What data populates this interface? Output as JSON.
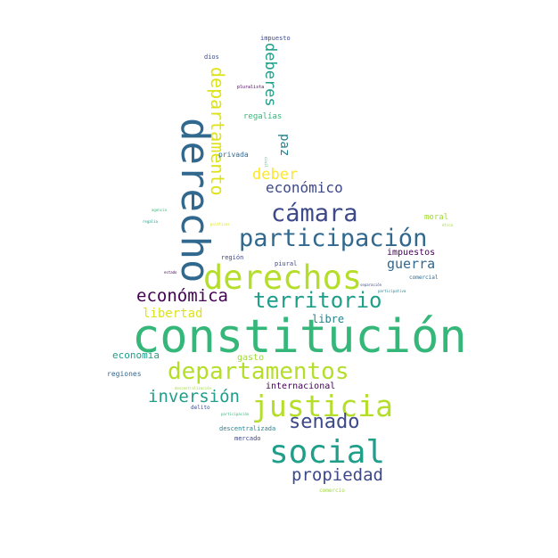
{
  "words": {
    "w1": "constitución",
    "w2": "derecho",
    "w3": "derechos",
    "w4": "social",
    "w5": "justicia",
    "w6": "participación",
    "w7": "cámara",
    "w8": "departamentos",
    "w9": "territorio",
    "w10": "departamento",
    "w11": "senado",
    "w12": "propiedad",
    "w13": "inversión",
    "w14": "económica",
    "w15": "deberes",
    "w16": "económico",
    "w17": "deber",
    "w18": "guerra",
    "w19": "libertad",
    "w20": "paz",
    "s1": "libre",
    "s2": "economía",
    "s3": "impuestos",
    "s4": "internacional",
    "s5": "gasto",
    "s6": "regalías",
    "s7": "privada",
    "s8": "moral",
    "s9": "regiones",
    "s10": "descentralizada",
    "s11": "mercado",
    "s12": "impuesto",
    "s13": "dios",
    "s14": "región",
    "s15": "piural",
    "s16": "comercial",
    "s17": "delito",
    "s18": "comercio",
    "s19": "pluralista",
    "s20": "regalía",
    "s21": "agencia",
    "s22": "políticos",
    "s23": "estado",
    "s24": "separación",
    "s25": "participativa",
    "s26": "ética",
    "s27": "descentralización",
    "s28": "participación",
    "s29": "civil"
  }
}
